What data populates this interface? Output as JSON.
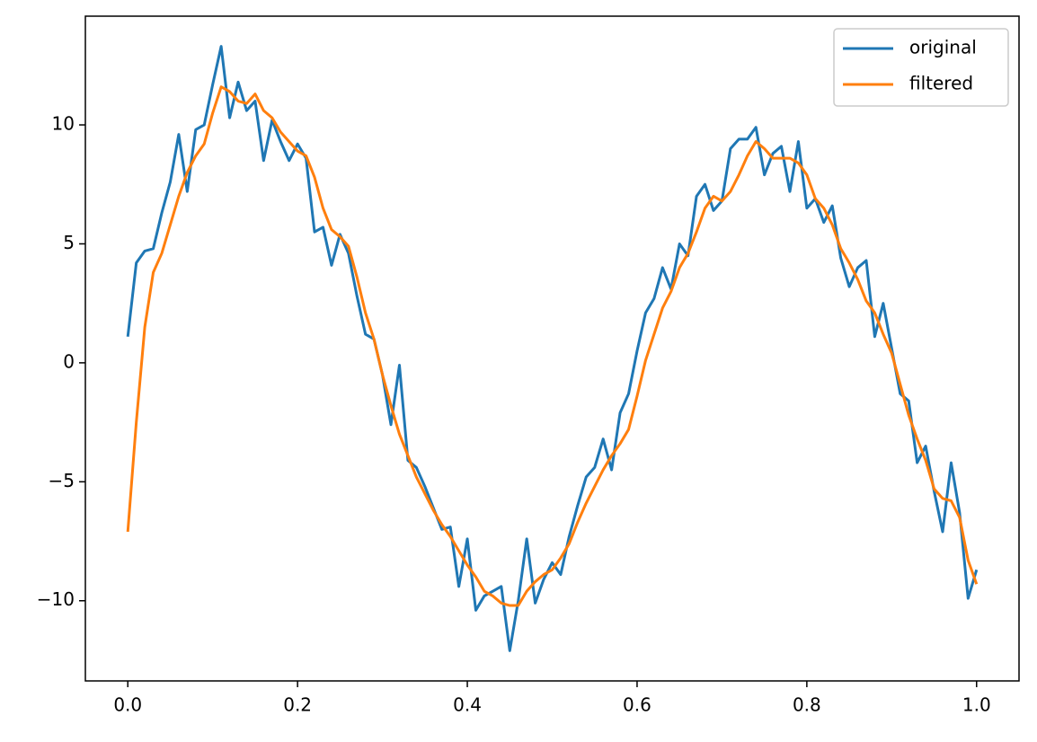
{
  "chart_data": {
    "type": "line",
    "x": [
      0,
      0.01,
      0.02,
      0.03,
      0.04,
      0.05,
      0.06,
      0.07,
      0.08,
      0.09,
      0.1,
      0.11,
      0.12,
      0.13,
      0.14,
      0.15,
      0.16,
      0.17,
      0.18,
      0.19,
      0.2,
      0.21,
      0.22,
      0.23,
      0.24,
      0.25,
      0.26,
      0.27,
      0.28,
      0.29,
      0.3,
      0.31,
      0.32,
      0.33,
      0.34,
      0.35,
      0.36,
      0.37,
      0.38,
      0.39,
      0.4,
      0.41,
      0.42,
      0.43,
      0.44,
      0.45,
      0.46,
      0.47,
      0.48,
      0.49,
      0.5,
      0.51,
      0.52,
      0.53,
      0.54,
      0.55,
      0.56,
      0.57,
      0.58,
      0.59,
      0.6,
      0.61,
      0.62,
      0.63,
      0.64,
      0.65,
      0.66,
      0.67,
      0.68,
      0.69,
      0.7,
      0.71,
      0.72,
      0.73,
      0.74,
      0.75,
      0.76,
      0.77,
      0.78,
      0.79,
      0.8,
      0.81,
      0.82,
      0.83,
      0.84,
      0.85,
      0.86,
      0.87,
      0.88,
      0.89,
      0.9,
      0.91,
      0.92,
      0.93,
      0.94,
      0.95,
      0.96,
      0.97,
      0.98,
      0.99,
      1
    ],
    "series": [
      {
        "name": "original",
        "color": "#1f77b4",
        "values": [
          1.1,
          4.2,
          4.7,
          4.8,
          6.3,
          7.6,
          9.6,
          7.2,
          9.8,
          10.0,
          11.7,
          13.3,
          10.3,
          11.8,
          10.6,
          11.0,
          8.5,
          10.2,
          9.3,
          8.5,
          9.2,
          8.6,
          5.5,
          5.7,
          4.1,
          5.4,
          4.6,
          2.8,
          1.2,
          1.0,
          -0.5,
          -2.6,
          -0.1,
          -4.1,
          -4.4,
          -5.2,
          -6.1,
          -7.0,
          -6.9,
          -9.4,
          -7.4,
          -10.4,
          -9.8,
          -9.6,
          -9.4,
          -12.1,
          -10.0,
          -7.4,
          -10.1,
          -9.1,
          -8.4,
          -8.9,
          -7.3,
          -6.0,
          -4.8,
          -4.4,
          -3.2,
          -4.5,
          -2.1,
          -1.3,
          0.5,
          2.1,
          2.7,
          4.0,
          3.1,
          5.0,
          4.5,
          7.0,
          7.5,
          6.4,
          6.8,
          9.0,
          9.4,
          9.4,
          9.9,
          7.9,
          8.8,
          9.1,
          7.2,
          9.3,
          6.5,
          6.9,
          5.9,
          6.6,
          4.4,
          3.2,
          4.0,
          4.3,
          1.1,
          2.5,
          0.6,
          -1.3,
          -1.6,
          -4.2,
          -3.5,
          -5.4,
          -7.1,
          -4.2,
          -6.3,
          -9.9,
          -8.7
        ]
      },
      {
        "name": "filtered",
        "color": "#ff7f0e",
        "values": [
          -7.1,
          -2.5,
          1.5,
          3.8,
          4.6,
          5.8,
          7.0,
          8.0,
          8.7,
          9.2,
          10.5,
          11.6,
          11.4,
          11.0,
          10.9,
          11.3,
          10.6,
          10.3,
          9.7,
          9.3,
          8.9,
          8.7,
          7.8,
          6.5,
          5.6,
          5.3,
          4.9,
          3.6,
          2.1,
          1.0,
          -0.5,
          -1.8,
          -3.0,
          -3.9,
          -4.8,
          -5.5,
          -6.2,
          -6.8,
          -7.3,
          -7.9,
          -8.5,
          -9.0,
          -9.6,
          -9.8,
          -10.1,
          -10.2,
          -10.2,
          -9.6,
          -9.2,
          -8.9,
          -8.7,
          -8.2,
          -7.6,
          -6.7,
          -5.9,
          -5.2,
          -4.5,
          -3.9,
          -3.4,
          -2.8,
          -1.4,
          0.1,
          1.2,
          2.3,
          3.0,
          4.0,
          4.6,
          5.5,
          6.5,
          7.0,
          6.8,
          7.2,
          7.9,
          8.7,
          9.3,
          9.0,
          8.6,
          8.6,
          8.6,
          8.4,
          7.9,
          6.9,
          6.5,
          5.8,
          4.8,
          4.2,
          3.5,
          2.6,
          2.1,
          1.2,
          0.4,
          -0.9,
          -2.2,
          -3.2,
          -4.1,
          -5.3,
          -5.7,
          -5.8,
          -6.5,
          -8.3,
          -9.3
        ]
      }
    ],
    "xlim": [
      -0.05,
      1.05
    ],
    "ylim": [
      -13.37,
      14.57
    ],
    "xticks": [
      {
        "value": 0,
        "label": "0.0"
      },
      0.2,
      0.4,
      0.6,
      0.8,
      {
        "value": 1,
        "label": "1.0"
      }
    ],
    "yticks": [
      {
        "value": -10,
        "label": "−10"
      },
      {
        "value": -5,
        "label": "−5"
      },
      0,
      5,
      10
    ],
    "legend": "upper right"
  }
}
